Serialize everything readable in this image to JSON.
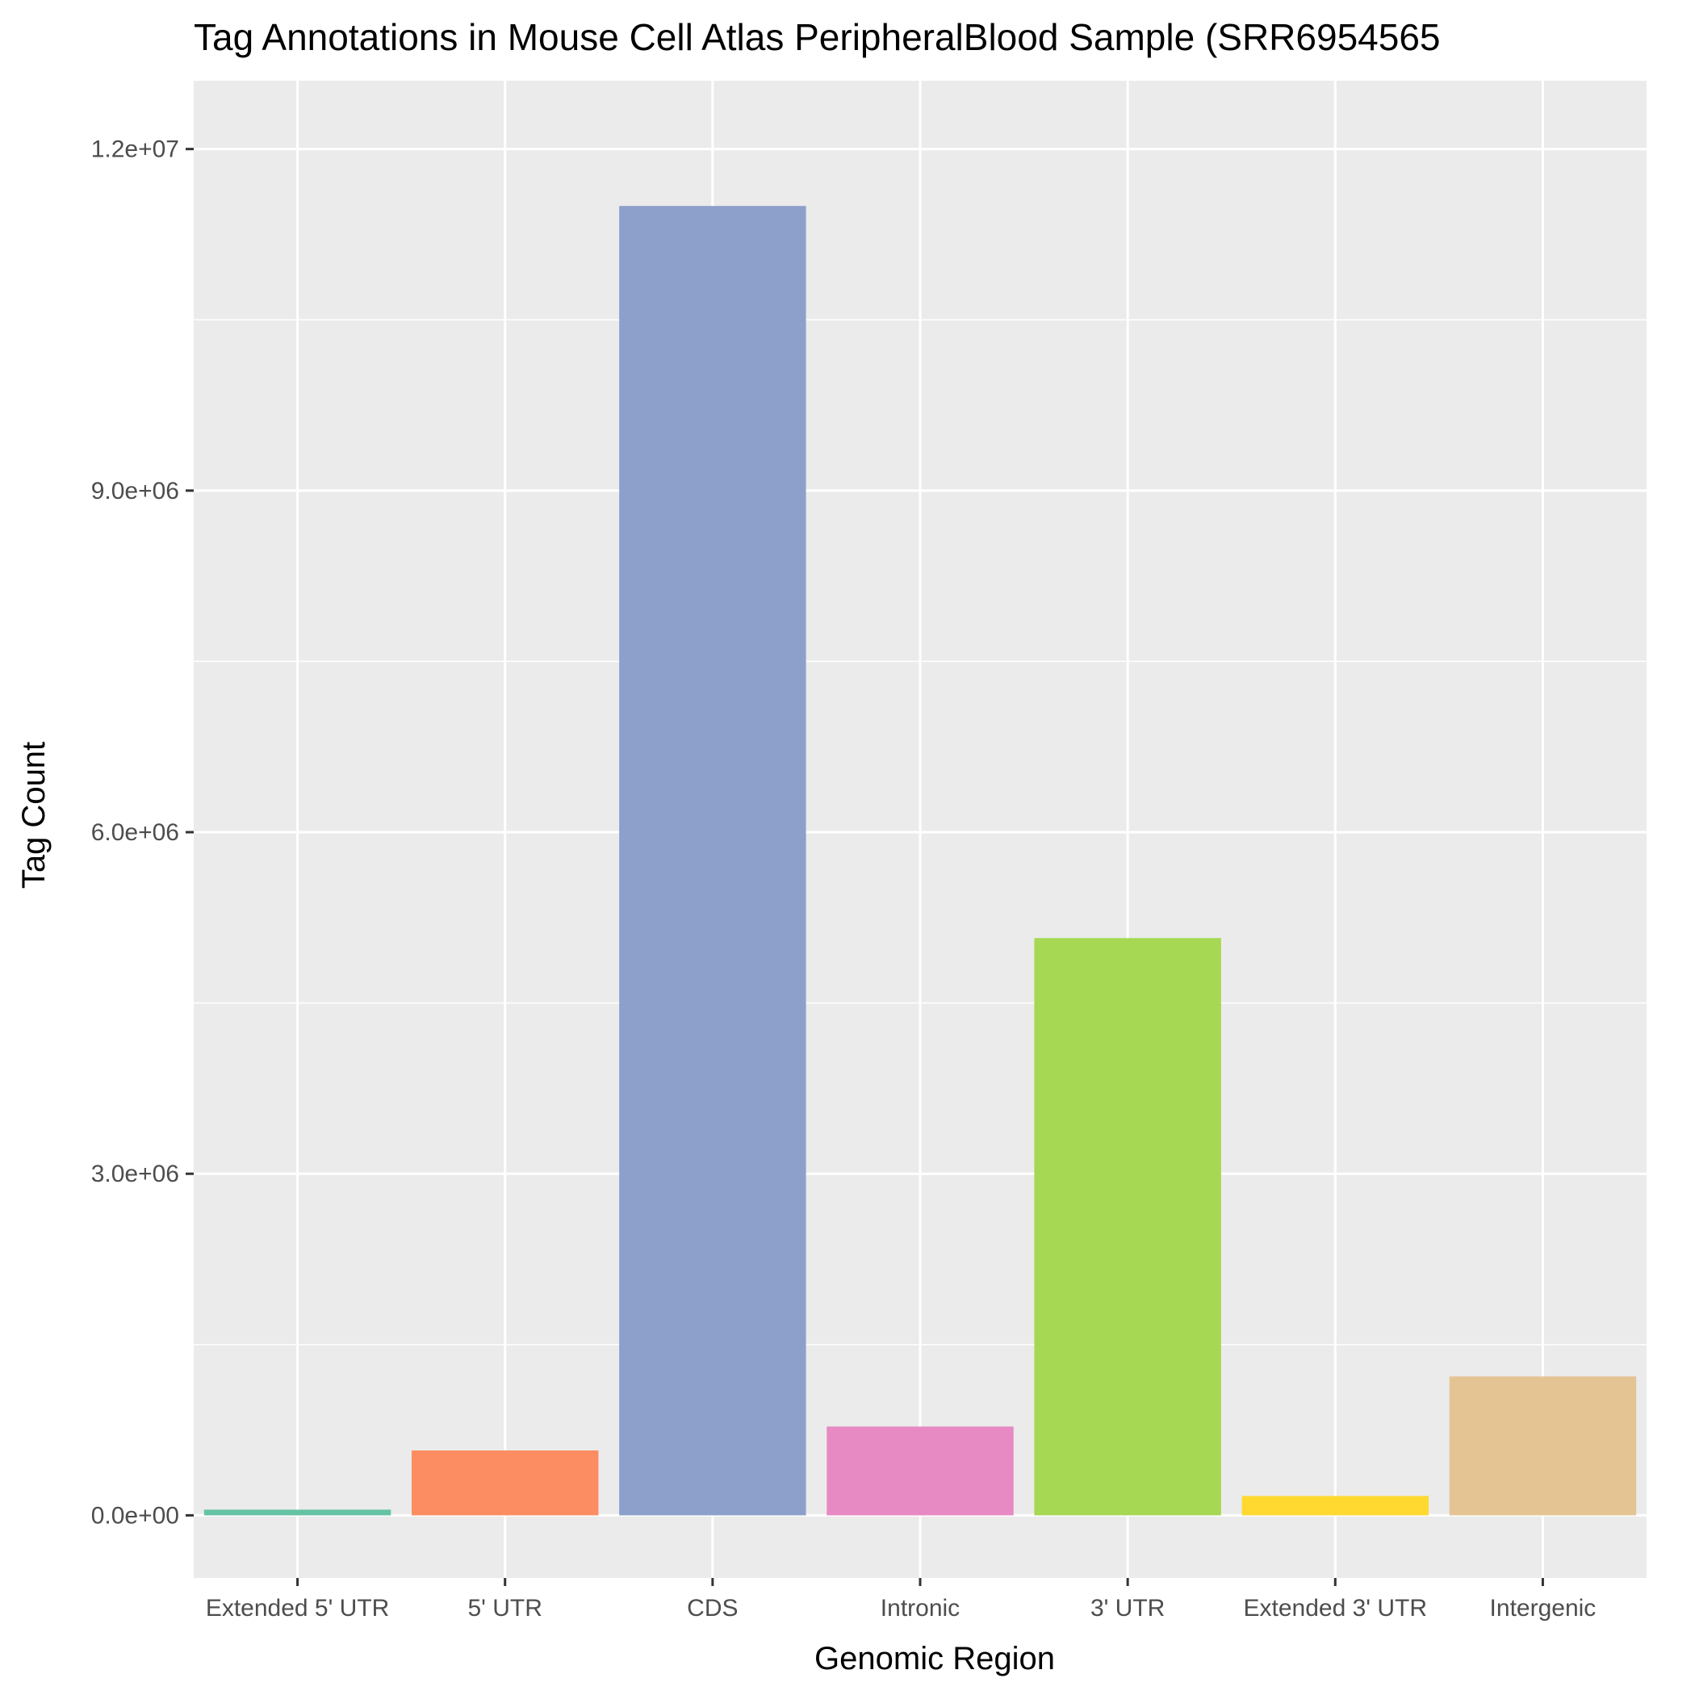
{
  "chart_data": {
    "type": "bar",
    "title": "Tag Annotations in Mouse Cell Atlas PeripheralBlood Sample (SRR6954565",
    "xlabel": "Genomic Region",
    "ylabel": "Tag Count",
    "categories": [
      "Extended 5' UTR",
      "5' UTR",
      "CDS",
      "Intronic",
      "3' UTR",
      "Extended 3' UTR",
      "Intergenic"
    ],
    "values": [
      50000,
      570000,
      11500000,
      780000,
      5070000,
      170000,
      1220000
    ],
    "colors": [
      "#66c2a5",
      "#fc8d62",
      "#8da0cb",
      "#e78ac3",
      "#a6d854",
      "#ffd92f",
      "#e5c494"
    ],
    "ylim": [
      -550000,
      12600000
    ],
    "yticks": [
      0,
      3000000,
      6000000,
      9000000,
      12000000
    ],
    "ytick_labels": [
      "0.0e+00",
      "3.0e+06",
      "6.0e+06",
      "9.0e+06",
      "1.2e+07"
    ],
    "grid": true,
    "panel_background": "#ebebeb",
    "legend": "none"
  }
}
